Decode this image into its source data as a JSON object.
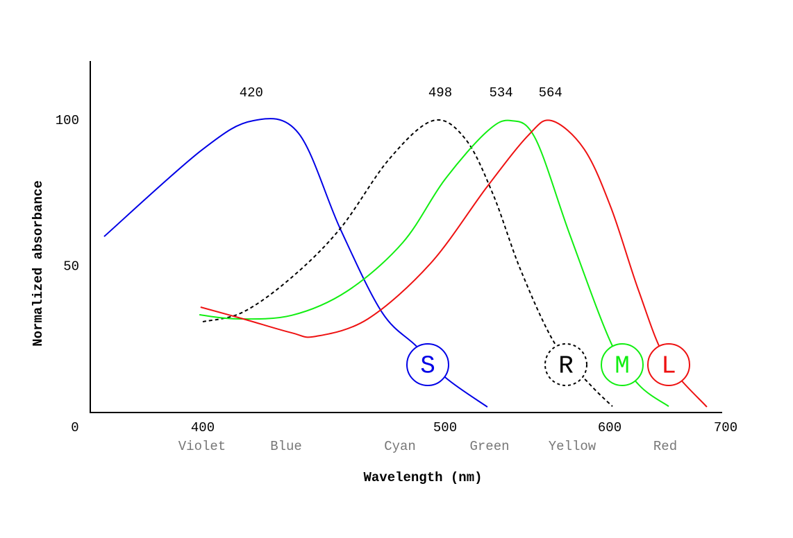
{
  "chart_data": {
    "type": "line",
    "x_label": "Wavelength (nm)",
    "y_label": "Normalized absorbance",
    "xlim": [
      350,
      700
    ],
    "ylim": [
      0,
      120
    ],
    "xticks": [
      400,
      500,
      600,
      700
    ],
    "yticks": [
      0,
      50,
      100
    ],
    "color_bands": [
      "Violet",
      "Blue",
      "Cyan",
      "Green",
      "Yellow",
      "Red"
    ],
    "peaks": [
      420,
      498,
      534,
      564
    ],
    "series": [
      {
        "name": "S",
        "color": "#0000e6",
        "dashed": false,
        "x": [
          359.3,
          399.4,
          420.9,
          439.5,
          456.7,
          473.9,
          488.3,
          500.4,
          525.7
        ],
        "values": [
          60.3,
          89.8,
          100,
          95.7,
          63,
          34.4,
          22.6,
          11.9,
          1.9
        ]
      },
      {
        "name": "R",
        "color": "#000000",
        "dashed": true,
        "x": [
          400,
          416.6,
          436.7,
          456.7,
          476.8,
          495,
          512.2,
          529.1,
          546,
          567,
          588.2,
          602.4
        ],
        "values": [
          31.1,
          34.4,
          46.3,
          63,
          86.7,
          100,
          93.8,
          74.8,
          48.7,
          23.3,
          9.5,
          2.1
        ]
      },
      {
        "name": "M",
        "color": "#11ee11",
        "dashed": false,
        "x": [
          398.6,
          413.8,
          436.7,
          459.6,
          482.5,
          499.7,
          525.3,
          540,
          554.9,
          576,
          601.2,
          625.1,
          650.9
        ],
        "values": [
          33.5,
          32.1,
          33.3,
          41.6,
          58.2,
          79.6,
          96.2,
          100,
          93.8,
          60.6,
          23.8,
          9.5,
          2.1
        ]
      },
      {
        "name": "L",
        "color": "#ee1111",
        "dashed": false,
        "x": [
          399.1,
          416.6,
          436.7,
          446.7,
          468.2,
          494,
          525.3,
          550.6,
          564.6,
          584.4,
          601.2,
          625.1,
          649,
          683.8
        ],
        "values": [
          36.1,
          32.1,
          27.3,
          26.1,
          32.1,
          51.1,
          77.2,
          95,
          100,
          90.3,
          70.1,
          41.6,
          17.8,
          1.9
        ]
      }
    ]
  }
}
